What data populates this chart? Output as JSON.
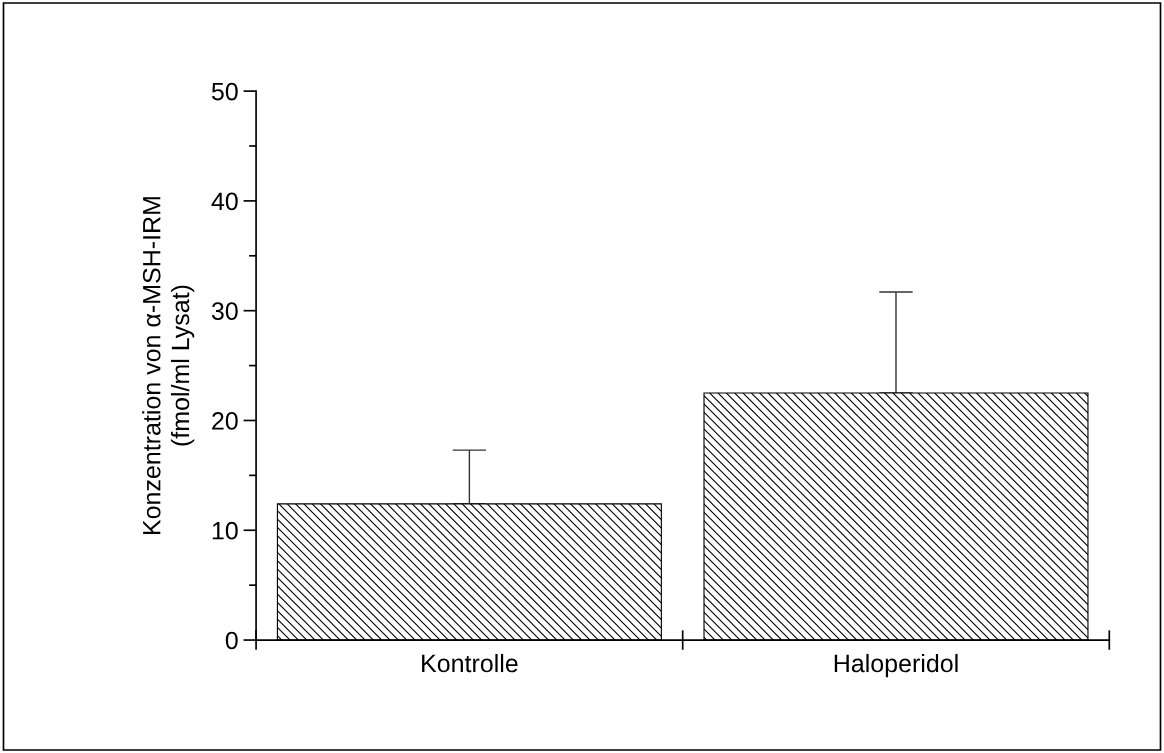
{
  "chart_data": {
    "type": "bar",
    "ylabel": "Konzentration von α-MSH-IRM\n(fmol/ml Lysat)",
    "categories": [
      "Kontrolle",
      "Haloperidol"
    ],
    "values": [
      12.4,
      22.5
    ],
    "errors": [
      [
        12.4,
        17.3
      ],
      [
        22.5,
        31.7
      ]
    ],
    "color": "#000000",
    "ylim": [
      0,
      50
    ],
    "yticks": [
      0,
      10,
      20,
      30,
      40,
      50
    ],
    "grid": false,
    "legend": false
  }
}
